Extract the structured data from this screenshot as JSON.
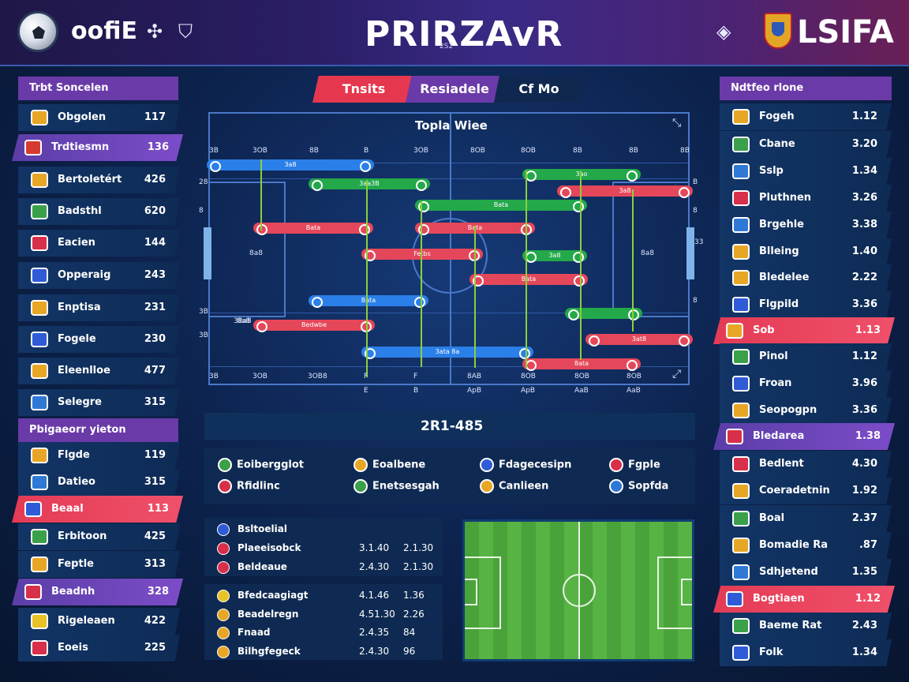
{
  "header": {
    "brand": "oofiE",
    "icons": [
      "soccer-ball-icon",
      "plus-arrows-icon",
      "shield-check-icon",
      "diamond-icon",
      "crest-icon"
    ],
    "icon_glyphs": [
      "✣",
      "⛉",
      "◈"
    ],
    "title": "PRIRZAvR",
    "subtitle": "2S2",
    "right_brand": "LSIFA"
  },
  "left_panel": {
    "head1": "Trbt Soncelen",
    "group1": [
      {
        "name": "Obgolen",
        "value": "117",
        "flag": "#e8a627"
      },
      {
        "name": "Trdtiesmn",
        "value": "136",
        "flag": "#d63b2f",
        "hl": "purple"
      },
      {
        "name": "Bertoletért",
        "value": "426",
        "flag": "#e8a627"
      },
      {
        "name": "Badsthl",
        "value": "620",
        "flag": "#3aa04a"
      },
      {
        "name": "Eacien",
        "value": "144",
        "flag": "#d8304a"
      },
      {
        "name": "Opperaig",
        "value": "243",
        "flag": "#2f5cd6"
      },
      {
        "name": "Enptisa",
        "value": "231",
        "flag": "#e8a627"
      },
      {
        "name": "Fogele",
        "value": "230",
        "flag": "#2f5cd6"
      },
      {
        "name": "Eleenlloe",
        "value": "477",
        "flag": "#e8a627"
      },
      {
        "name": "Selegre",
        "value": "315",
        "flag": "#2f78d6"
      }
    ],
    "head2": "Pbigaeorr yieton",
    "group2": [
      {
        "name": "Flgde",
        "value": "119",
        "flag": "#e8a627"
      },
      {
        "name": "Datieo",
        "value": "315",
        "flag": "#2f78d6"
      },
      {
        "name": "Beaal",
        "value": "113",
        "flag": "#2f5cd6",
        "hl": "red"
      },
      {
        "name": "Erbitoon",
        "value": "425",
        "flag": "#3aa04a"
      },
      {
        "name": "Feptle",
        "value": "313",
        "flag": "#e8a627"
      },
      {
        "name": "Beadnh",
        "value": "328",
        "flag": "#d8304a",
        "hl": "purple"
      },
      {
        "name": "Rigeleaen",
        "value": "422",
        "flag": "#e8c227"
      },
      {
        "name": "Eoeis",
        "value": "225",
        "flag": "#d8304a"
      }
    ]
  },
  "right_panel": {
    "head": "Ndtfeo rlone",
    "rows": [
      {
        "name": "Fogeh",
        "value": "1.12",
        "flag": "#e8a627"
      },
      {
        "name": "Cbane",
        "value": "3.20",
        "flag": "#3aa04a"
      },
      {
        "name": "Sslp",
        "value": "1.34",
        "flag": "#2f78d6"
      },
      {
        "name": "Pluthnen",
        "value": "3.26",
        "flag": "#d8304a"
      },
      {
        "name": "Brgehle",
        "value": "3.38",
        "flag": "#2f78d6"
      },
      {
        "name": "Blleing",
        "value": "1.40",
        "flag": "#e8a627"
      },
      {
        "name": "Bledelee",
        "value": "2.22",
        "flag": "#e8a627"
      },
      {
        "name": "Flgpild",
        "value": "3.36",
        "flag": "#2f5cd6"
      },
      {
        "name": "Sob",
        "value": "1.13",
        "flag": "#e8a627",
        "hl": "red"
      },
      {
        "name": "Pinol",
        "value": "1.12",
        "flag": "#3aa04a"
      },
      {
        "name": "Froan",
        "value": "3.96",
        "flag": "#2f5cd6"
      },
      {
        "name": "Seopogpn",
        "value": "3.36",
        "flag": "#e8a627"
      },
      {
        "name": "Bledarea",
        "value": "1.38",
        "flag": "#d8304a",
        "hl": "purple"
      },
      {
        "name": "Bedlent",
        "value": "4.30",
        "flag": "#d8304a"
      },
      {
        "name": "Coeradetnin",
        "value": "1.92",
        "flag": "#e8a627"
      },
      {
        "name": "Boal",
        "value": "2.37",
        "flag": "#3aa04a"
      },
      {
        "name": "Bomadie Ra",
        "value": ".87",
        "flag": "#e8a627"
      },
      {
        "name": "Sdhjetend",
        "value": "1.35",
        "flag": "#2f78d6"
      },
      {
        "name": "Bogtiaen",
        "value": "1.12",
        "flag": "#2f5cd6",
        "hl": "red"
      },
      {
        "name": "Baeme Rat",
        "value": "2.43",
        "flag": "#3aa04a"
      },
      {
        "name": "Folk",
        "value": "1.34",
        "flag": "#2f5cd6"
      }
    ]
  },
  "tabs": [
    {
      "label": "Tnsits",
      "color": "#e5384f"
    },
    {
      "label": "Resiadele",
      "color": "#6a3aa8"
    },
    {
      "label": "Cf Mo",
      "color": "#10284f"
    }
  ],
  "chart": {
    "title": "Topla Wiee",
    "top_ticks": [
      "3B",
      "3OB",
      "8B",
      "B",
      "3OB",
      "8OB",
      "8OB",
      "8B",
      "8B",
      "8B"
    ],
    "bottom_ticks": [
      "3B",
      "3OB",
      "3OB8",
      "F",
      "F",
      "8AB",
      "8OB",
      "8OB",
      "8OB"
    ],
    "bottom_sub": [
      "E",
      "B",
      "ApB",
      "ApB",
      "AaB",
      "AaB"
    ],
    "left_ticks": [
      "28",
      "8",
      "3B",
      "3B"
    ],
    "right_ticks": [
      "B",
      "8",
      "8"
    ],
    "field_labels": [
      "8a8",
      "8a8",
      "8a8",
      "38a8",
      "33"
    ],
    "bars": [
      {
        "label": "3a8",
        "color": "blue"
      },
      {
        "label": "3aa3B",
        "color": "green"
      },
      {
        "label": "3ao",
        "color": "green"
      },
      {
        "label": "3a8",
        "color": "red"
      },
      {
        "label": "Bata",
        "color": "green"
      },
      {
        "label": "Bata",
        "color": "red"
      },
      {
        "label": "Bata",
        "color": "red"
      },
      {
        "label": "Fetbs",
        "color": "red"
      },
      {
        "label": "3a8",
        "color": "green"
      },
      {
        "label": "Bata",
        "color": "red"
      },
      {
        "label": "Bata",
        "color": "blue"
      },
      {
        "label": "Bedwbe",
        "color": "red"
      },
      {
        "label": "",
        "color": "green"
      },
      {
        "label": "3at8",
        "color": "red"
      },
      {
        "label": "3ata 8a",
        "color": "blue"
      },
      {
        "label": "8ata",
        "color": "red"
      }
    ]
  },
  "score": "2R1-485",
  "legend": [
    {
      "label": "Eoibergglot",
      "color": "#3aa04a"
    },
    {
      "label": "Eoalbene",
      "color": "#e8a627"
    },
    {
      "label": "Fdagecesipn",
      "color": "#2f5cd6"
    },
    {
      "label": "Fgple",
      "color": "#d8304a"
    },
    {
      "label": "Rfidlinc",
      "color": "#d8304a"
    },
    {
      "label": "Enetsesgah",
      "color": "#3aa04a"
    },
    {
      "label": "Canlieen",
      "color": "#e8a627"
    },
    {
      "label": "Sopfda",
      "color": "#2f78d6"
    }
  ],
  "table1": {
    "rows": [
      {
        "name": "Bsltoelial",
        "a": "",
        "b": "",
        "flag": "#2f5cd6"
      },
      {
        "name": "Plaeeisobck",
        "a": "3.1.40",
        "b": "2.1.30",
        "flag": "#d8304a"
      },
      {
        "name": "Beldeaue",
        "a": "2.4.30",
        "b": "2.1.30",
        "flag": "#d8304a"
      }
    ]
  },
  "table2": {
    "rows": [
      {
        "name": "Bfedcaagiagt",
        "a": "4.1.46",
        "b": "1.36",
        "flag": "#e8c227"
      },
      {
        "name": "Beadelregn",
        "a": "4.51.30",
        "b": "2.26",
        "flag": "#e8a627"
      },
      {
        "name": "Fnaad",
        "a": "2.4.35",
        "b": "84",
        "flag": "#e8a627"
      },
      {
        "name": "Bilhgfegeck",
        "a": "2.4.30",
        "b": "96",
        "flag": "#e8a627"
      }
    ]
  }
}
